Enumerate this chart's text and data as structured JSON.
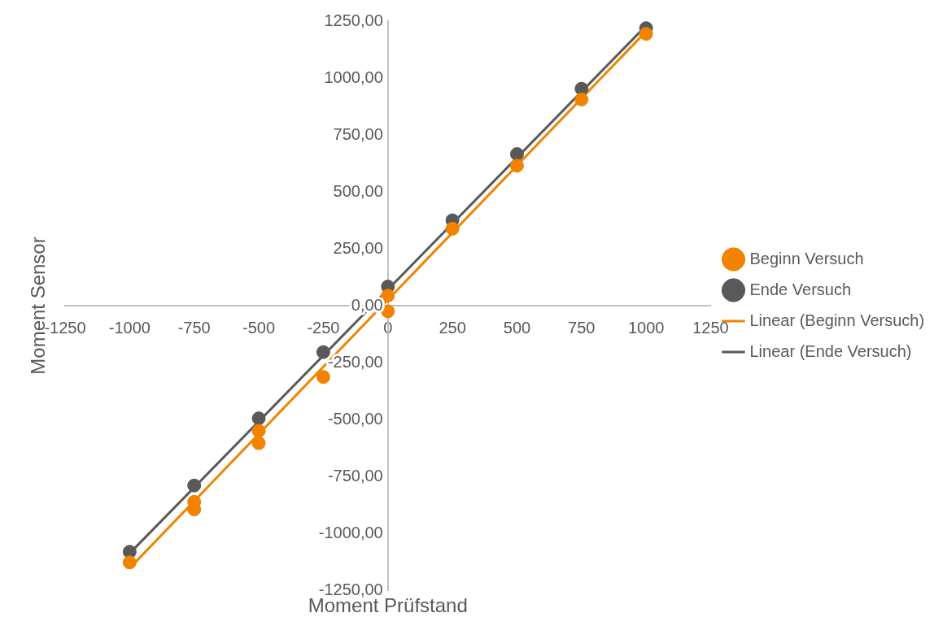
{
  "chart_data": {
    "type": "scatter",
    "xlabel": "Moment Prüfstand",
    "ylabel": "Moment Sensor",
    "xlim": [
      -1250,
      1250
    ],
    "ylim": [
      -1250,
      1250
    ],
    "xticks": [
      -1250,
      -1000,
      -750,
      -500,
      -250,
      0,
      250,
      500,
      750,
      1000,
      1250
    ],
    "yticks": [
      {
        "value": -1250,
        "label": "-1250,00"
      },
      {
        "value": -1000,
        "label": "-1000,00"
      },
      {
        "value": -750,
        "label": "-750,00"
      },
      {
        "value": -500,
        "label": "-500,00"
      },
      {
        "value": -250,
        "label": "-250,00"
      },
      {
        "value": 0,
        "label": "0,00"
      },
      {
        "value": 250,
        "label": "250,00"
      },
      {
        "value": 500,
        "label": "500,00"
      },
      {
        "value": 750,
        "label": "750,00"
      },
      {
        "value": 1000,
        "label": "1000,00"
      },
      {
        "value": 1250,
        "label": "1250,00"
      }
    ],
    "grid": false,
    "legend": "right",
    "marker": "circle",
    "line_style": "solid",
    "series": [
      {
        "name": "Beginn Versuch",
        "type": "scatter",
        "color": "#f28300",
        "x": [
          -1000,
          -750,
          -750,
          -500,
          -500,
          -250,
          0,
          0,
          250,
          500,
          750,
          1000
        ],
        "values": [
          -1128,
          -862,
          -895,
          -550,
          -604,
          -313,
          -25,
          44,
          338,
          615,
          906,
          1194
        ]
      },
      {
        "name": "Ende Versuch",
        "type": "scatter",
        "color": "#595959",
        "x": [
          -1000,
          -750,
          -500,
          -250,
          0,
          250,
          500,
          750,
          1000
        ],
        "values": [
          -1081,
          -790,
          -495,
          -204,
          84,
          375,
          666,
          953,
          1219
        ]
      },
      {
        "name": "Linear (Beginn Versuch)",
        "type": "line",
        "marker": "none",
        "color": "#f28300",
        "x": [
          -1000,
          1000
        ],
        "values": [
          -1153,
          1205
        ]
      },
      {
        "name": "Linear (Ende Versuch)",
        "type": "line",
        "marker": "none",
        "color": "#595959",
        "x": [
          -1000,
          1000
        ],
        "values": [
          -1088,
          1230
        ]
      }
    ]
  }
}
